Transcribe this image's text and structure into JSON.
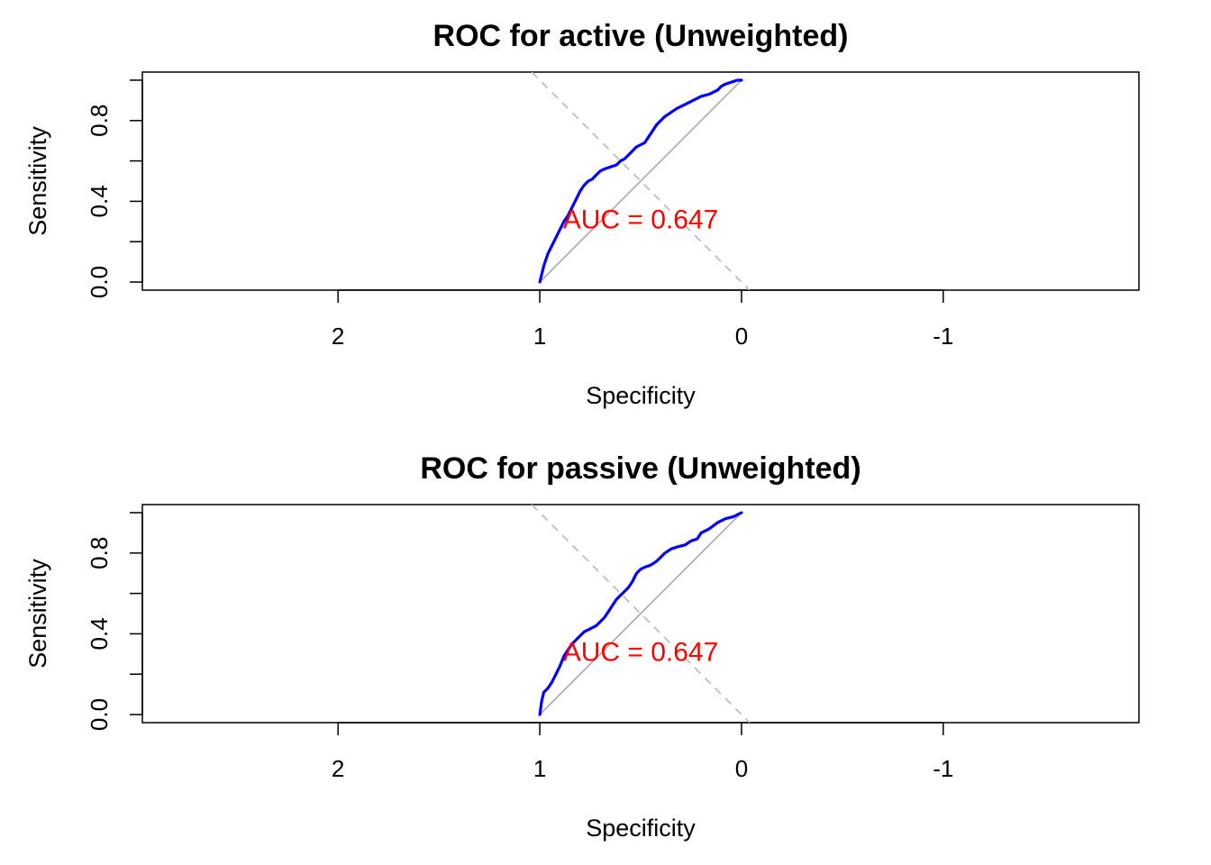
{
  "chart_data": [
    {
      "type": "line",
      "title": "ROC for active (Unweighted)",
      "xlabel": "Specificity",
      "ylabel": "Sensitivity",
      "xlim": [
        2.97,
        -1.97
      ],
      "ylim": [
        -0.04,
        1.04
      ],
      "x_ticks": [
        2,
        1,
        0,
        -1
      ],
      "x_tick_labels": [
        "2",
        "1",
        "0",
        "-1"
      ],
      "y_ticks": [
        0.0,
        0.2,
        0.4,
        0.6,
        0.8,
        1.0
      ],
      "y_tick_labels": [
        "0.0",
        "",
        "0.4",
        "",
        "0.8",
        ""
      ],
      "grid": false,
      "series": [
        {
          "color": "#0000ff",
          "x": [
            1.0,
            0.99,
            0.98,
            0.96,
            0.94,
            0.92,
            0.9,
            0.88,
            0.86,
            0.84,
            0.82,
            0.8,
            0.78,
            0.76,
            0.74,
            0.72,
            0.7,
            0.68,
            0.65,
            0.62,
            0.6,
            0.58,
            0.55,
            0.52,
            0.5,
            0.48,
            0.46,
            0.44,
            0.42,
            0.4,
            0.38,
            0.35,
            0.32,
            0.28,
            0.24,
            0.2,
            0.16,
            0.12,
            0.1,
            0.08,
            0.05,
            0.02,
            0.0
          ],
          "y": [
            0.0,
            0.04,
            0.08,
            0.14,
            0.18,
            0.22,
            0.26,
            0.3,
            0.33,
            0.37,
            0.41,
            0.45,
            0.48,
            0.5,
            0.51,
            0.53,
            0.55,
            0.56,
            0.57,
            0.58,
            0.6,
            0.61,
            0.64,
            0.67,
            0.68,
            0.69,
            0.72,
            0.75,
            0.78,
            0.8,
            0.82,
            0.84,
            0.86,
            0.88,
            0.9,
            0.92,
            0.93,
            0.95,
            0.97,
            0.98,
            0.99,
            1.0,
            1.0
          ]
        }
      ],
      "reference_line": {
        "x": [
          1,
          0
        ],
        "y": [
          0,
          1
        ],
        "color": "#a9a9a9"
      },
      "annotation": {
        "text": "AUC = 0.647",
        "x": 0.5,
        "y": 0.3,
        "color": "#ff0000"
      }
    },
    {
      "type": "line",
      "title": "ROC for passive (Unweighted)",
      "xlabel": "Specificity",
      "ylabel": "Sensitivity",
      "xlim": [
        2.97,
        -1.97
      ],
      "ylim": [
        -0.04,
        1.04
      ],
      "x_ticks": [
        2,
        1,
        0,
        -1
      ],
      "x_tick_labels": [
        "2",
        "1",
        "0",
        "-1"
      ],
      "y_ticks": [
        0.0,
        0.2,
        0.4,
        0.6,
        0.8,
        1.0
      ],
      "y_tick_labels": [
        "0.0",
        "",
        "0.4",
        "",
        "0.8",
        ""
      ],
      "grid": false,
      "series": [
        {
          "color": "#0000ff",
          "x": [
            1.0,
            0.99,
            0.98,
            0.96,
            0.94,
            0.92,
            0.9,
            0.88,
            0.86,
            0.84,
            0.82,
            0.8,
            0.78,
            0.76,
            0.74,
            0.72,
            0.7,
            0.68,
            0.66,
            0.64,
            0.62,
            0.6,
            0.58,
            0.56,
            0.54,
            0.52,
            0.5,
            0.48,
            0.45,
            0.42,
            0.4,
            0.38,
            0.35,
            0.32,
            0.28,
            0.25,
            0.22,
            0.2,
            0.16,
            0.12,
            0.08,
            0.04,
            0.02,
            0.0
          ],
          "y": [
            0.0,
            0.07,
            0.11,
            0.13,
            0.16,
            0.2,
            0.24,
            0.29,
            0.32,
            0.35,
            0.37,
            0.39,
            0.41,
            0.42,
            0.43,
            0.44,
            0.46,
            0.48,
            0.51,
            0.54,
            0.57,
            0.59,
            0.61,
            0.63,
            0.66,
            0.7,
            0.72,
            0.73,
            0.74,
            0.76,
            0.78,
            0.8,
            0.82,
            0.83,
            0.84,
            0.86,
            0.87,
            0.9,
            0.92,
            0.95,
            0.97,
            0.98,
            0.99,
            1.0
          ]
        }
      ],
      "reference_line": {
        "x": [
          1,
          0
        ],
        "y": [
          0,
          1
        ],
        "color": "#a9a9a9"
      },
      "annotation": {
        "text": "AUC = 0.647",
        "x": 0.5,
        "y": 0.3,
        "color": "#ff0000"
      }
    }
  ]
}
